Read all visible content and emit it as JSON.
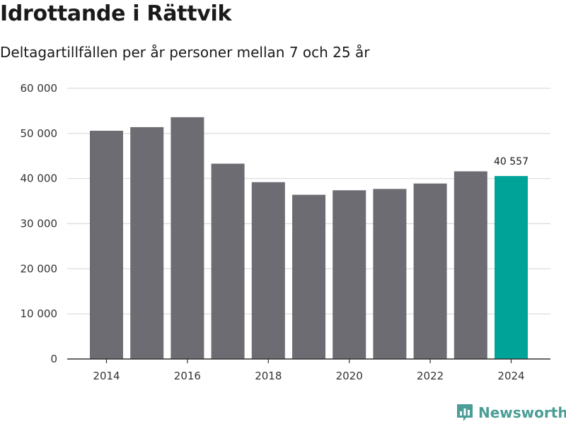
{
  "title": "Idrottande i Rättvik",
  "subtitle": "Deltagartillfällen per år personer mellan 7 och 25 år",
  "brand": "Newsworthy",
  "colors": {
    "bar": "#6d6c72",
    "highlight": "#00a398",
    "grid": "#d9d9d9",
    "axis": "#333333",
    "brand": "#4a9e96"
  },
  "chart_data": {
    "type": "bar",
    "categories": [
      "2014",
      "2015",
      "2016",
      "2017",
      "2018",
      "2019",
      "2020",
      "2021",
      "2022",
      "2023",
      "2024"
    ],
    "values": [
      50600,
      51400,
      53600,
      43300,
      39200,
      36400,
      37400,
      37700,
      38900,
      41600,
      40557
    ],
    "highlight_category": "2024",
    "data_labels": [
      {
        "category": "2024",
        "text": "40 557"
      }
    ],
    "x_tick_labels": [
      "2014",
      "2016",
      "2018",
      "2020",
      "2022",
      "2024"
    ],
    "y_ticks": [
      0,
      10000,
      20000,
      30000,
      40000,
      50000,
      60000
    ],
    "y_tick_labels": [
      "0",
      "10 000",
      "20 000",
      "30 000",
      "40 000",
      "50 000",
      "60 000"
    ],
    "ylim": [
      0,
      60000
    ],
    "grid": true,
    "xlabel": "",
    "ylabel": ""
  }
}
